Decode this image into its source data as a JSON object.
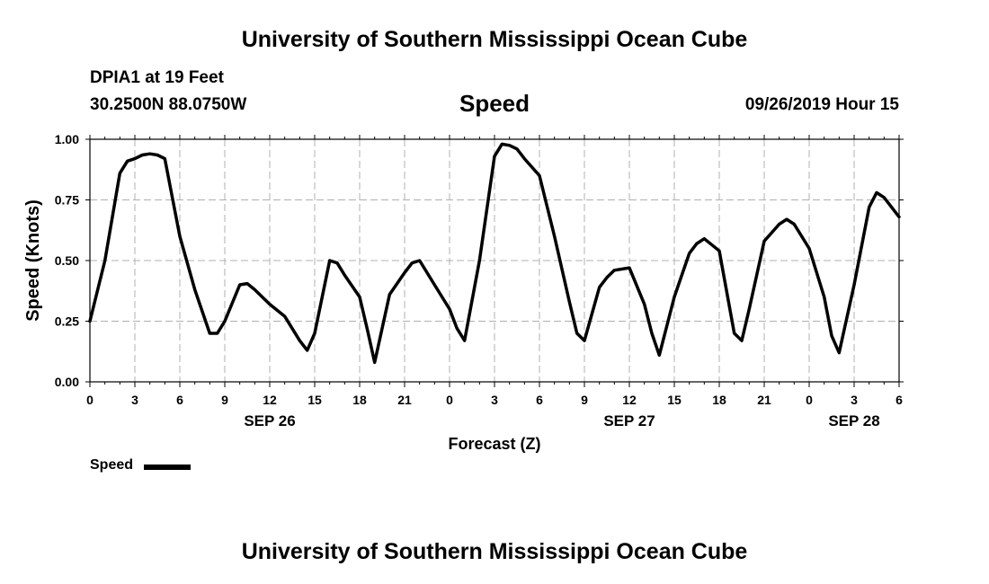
{
  "page": {
    "title_top": "University of Southern Mississippi Ocean Cube",
    "title_bottom": "University of Southern Mississippi Ocean Cube",
    "station": "DPIA1 at 19 Feet",
    "coordinates": "30.2500N 88.0750W",
    "variable": "Speed",
    "run_time": "09/26/2019 Hour 15"
  },
  "chart_data": {
    "type": "line",
    "title": "Speed",
    "xlabel": "Forecast (Z)",
    "ylabel": "Speed (Knots)",
    "ylim": [
      0,
      1
    ],
    "xlim": [
      0,
      54
    ],
    "grid": true,
    "y_ticks": [
      {
        "value": 0,
        "label": "0.00"
      },
      {
        "value": 0.25,
        "label": "0.25"
      },
      {
        "value": 0.5,
        "label": "0.50"
      },
      {
        "value": 0.75,
        "label": "0.75"
      },
      {
        "value": 1.0,
        "label": "1.00"
      }
    ],
    "x_ticks": [
      {
        "value": 0,
        "label": "0"
      },
      {
        "value": 3,
        "label": "3"
      },
      {
        "value": 6,
        "label": "6"
      },
      {
        "value": 9,
        "label": "9"
      },
      {
        "value": 12,
        "label": "12"
      },
      {
        "value": 15,
        "label": "15"
      },
      {
        "value": 18,
        "label": "18"
      },
      {
        "value": 21,
        "label": "21"
      },
      {
        "value": 24,
        "label": "0"
      },
      {
        "value": 27,
        "label": "3"
      },
      {
        "value": 30,
        "label": "6"
      },
      {
        "value": 33,
        "label": "9"
      },
      {
        "value": 36,
        "label": "12"
      },
      {
        "value": 39,
        "label": "15"
      },
      {
        "value": 42,
        "label": "18"
      },
      {
        "value": 45,
        "label": "21"
      },
      {
        "value": 48,
        "label": "0"
      },
      {
        "value": 51,
        "label": "3"
      },
      {
        "value": 54,
        "label": "6"
      }
    ],
    "date_labels": [
      {
        "value": 12,
        "label": "SEP 26"
      },
      {
        "value": 36,
        "label": "SEP 27"
      },
      {
        "value": 51,
        "label": "SEP 28"
      }
    ],
    "legend": {
      "label": "Speed",
      "position": "bottom-left"
    },
    "series": [
      {
        "name": "Speed",
        "color": "#000000",
        "x": [
          0,
          1,
          2,
          2.5,
          3,
          3.5,
          4,
          4.5,
          5,
          6,
          7,
          8,
          8.5,
          9,
          10,
          10.5,
          11,
          12,
          13,
          14,
          14.5,
          15,
          16,
          16.5,
          17,
          18,
          18.5,
          19,
          20,
          21,
          21.5,
          22,
          23,
          24,
          24.5,
          25,
          26,
          27,
          27.5,
          28,
          28.5,
          29,
          30,
          31,
          32,
          32.5,
          33,
          34,
          34.5,
          35,
          36,
          37,
          37.5,
          38,
          39,
          40,
          40.5,
          41,
          42,
          43,
          43.5,
          44,
          45,
          46,
          46.5,
          47,
          48,
          49,
          49.5,
          50,
          51,
          52,
          52.5,
          53,
          54
        ],
        "values": [
          0.25,
          0.5,
          0.86,
          0.91,
          0.92,
          0.935,
          0.94,
          0.935,
          0.92,
          0.6,
          0.38,
          0.2,
          0.2,
          0.25,
          0.4,
          0.405,
          0.38,
          0.32,
          0.27,
          0.17,
          0.13,
          0.2,
          0.5,
          0.49,
          0.44,
          0.35,
          0.22,
          0.08,
          0.36,
          0.45,
          0.49,
          0.5,
          0.4,
          0.3,
          0.22,
          0.17,
          0.5,
          0.93,
          0.98,
          0.975,
          0.96,
          0.92,
          0.85,
          0.6,
          0.33,
          0.2,
          0.17,
          0.39,
          0.43,
          0.46,
          0.47,
          0.32,
          0.2,
          0.11,
          0.35,
          0.53,
          0.57,
          0.59,
          0.54,
          0.2,
          0.17,
          0.3,
          0.58,
          0.65,
          0.67,
          0.65,
          0.55,
          0.35,
          0.19,
          0.12,
          0.4,
          0.72,
          0.78,
          0.76,
          0.68
        ]
      }
    ]
  }
}
